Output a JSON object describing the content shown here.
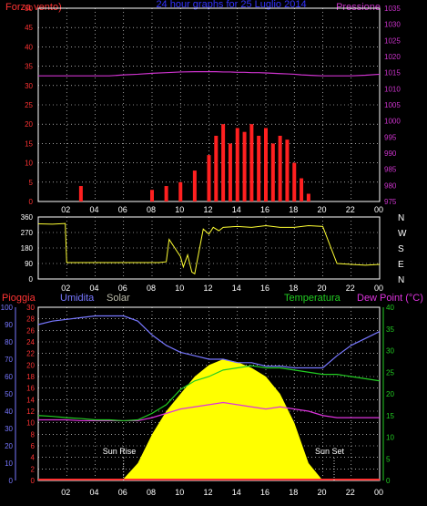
{
  "title": "24 hour graphs for  25 Luglio 2014",
  "colors": {
    "wind": "#ff2020",
    "pressure": "#cc33cc",
    "direction": "#ffff33",
    "rain": "#ff3333",
    "humidity": "#7777ff",
    "solar": "#ffff00",
    "temperature": "#22cc22",
    "dewpoint": "#dd33dd",
    "axis_left": "#ff3333",
    "axis_right": "#cc33cc",
    "frame": "#ffffff"
  },
  "x_ticks": [
    "02",
    "04",
    "06",
    "08",
    "10",
    "12",
    "14",
    "16",
    "18",
    "20",
    "22",
    "00"
  ],
  "panel1": {
    "left_label": "Forza vento)",
    "right_label": "Pressione",
    "left_ticks": [
      "0",
      "5",
      "10",
      "15",
      "20",
      "25",
      "30",
      "35",
      "40",
      "45",
      "50"
    ],
    "right_ticks": [
      "975",
      "980",
      "985",
      "990",
      "995",
      "1000",
      "1005",
      "1010",
      "1015",
      "1020",
      "1025",
      "1030",
      "1035"
    ]
  },
  "panel2": {
    "left_ticks": [
      "0",
      "90",
      "180",
      "270",
      "360"
    ],
    "compass": [
      "N",
      "W",
      "S",
      "E",
      "N"
    ]
  },
  "panel3": {
    "rain_label": "Pioggia",
    "humidity_label": "Umidita",
    "solar_label": "Solar",
    "temp_label": "Temperatura",
    "dew_label": "Dew Point (°C)",
    "humidity_ticks": [
      "0",
      "10",
      "20",
      "30",
      "40",
      "50",
      "60",
      "70",
      "80",
      "90",
      "100"
    ],
    "rain_ticks": [
      "0",
      "2",
      "4",
      "6",
      "8",
      "10",
      "12",
      "14",
      "16",
      "18",
      "20",
      "22",
      "24",
      "26",
      "28",
      "30"
    ],
    "temp_ticks": [
      "0",
      "5",
      "10",
      "15",
      "20",
      "25",
      "30",
      "35",
      "40"
    ],
    "sun_rise": "Sun Rise",
    "sun_set": "Sun Set"
  },
  "chart_data": [
    {
      "type": "line",
      "title": "24 hour graphs for  25 Luglio 2014",
      "ylabel": "Forza vento)",
      "y2label": "Pressione",
      "ylim": [
        0,
        50
      ],
      "y2lim": [
        975,
        1035
      ],
      "x": [
        0,
        1,
        2,
        3,
        4,
        5,
        6,
        7,
        8,
        9,
        10,
        11,
        12,
        12.5,
        13,
        13.5,
        14,
        14.5,
        15,
        15.5,
        16,
        16.5,
        17,
        17.5,
        18,
        18.5,
        19,
        19.5,
        20,
        21,
        22,
        23,
        24
      ],
      "series": [
        {
          "name": "Forza vento)",
          "values": [
            0,
            0,
            0,
            4,
            0,
            0,
            0,
            0,
            3,
            4,
            5,
            8,
            12,
            17,
            20,
            15,
            19,
            18,
            20,
            17,
            19,
            15,
            17,
            16,
            10,
            6,
            2,
            0,
            0,
            0,
            0,
            0,
            0
          ]
        },
        {
          "name": "Pressione",
          "values": [
            1014,
            1014,
            1014,
            1014,
            1014,
            1014,
            1014.3,
            1014.5,
            1014.8,
            1015,
            1015.2,
            1015.3,
            1015.3,
            1015.3,
            1015.2,
            1015.2,
            1015.1,
            1015.1,
            1015,
            1015,
            1014.9,
            1014.8,
            1014.7,
            1014.6,
            1014.5,
            1014.3,
            1014.2,
            1014.1,
            1014,
            1014,
            1014,
            1014.2,
            1014.5
          ]
        }
      ]
    },
    {
      "type": "line",
      "ylim": [
        0,
        360
      ],
      "x": [
        0,
        1,
        1.9,
        2,
        3,
        4,
        5,
        6,
        7,
        8,
        8.5,
        9,
        9.2,
        9.6,
        10,
        10.2,
        10.5,
        10.8,
        11,
        11.3,
        11.6,
        12,
        12.3,
        12.7,
        13,
        14,
        15,
        16,
        17,
        18,
        19,
        20,
        21,
        22,
        23,
        24
      ],
      "series": [
        {
          "name": "",
          "values": [
            320,
            318,
            322,
            95,
            95,
            95,
            95,
            95,
            95,
            95,
            95,
            100,
            230,
            180,
            130,
            70,
            140,
            40,
            30,
            160,
            290,
            260,
            300,
            280,
            300,
            305,
            300,
            310,
            300,
            300,
            310,
            305,
            90,
            85,
            80,
            85
          ]
        }
      ]
    },
    {
      "type": "line",
      "ylim": [
        0,
        100
      ],
      "x": [
        0,
        1,
        2,
        3,
        4,
        5,
        6,
        7,
        8,
        9,
        10,
        11,
        12,
        13,
        14,
        15,
        16,
        17,
        18,
        19,
        20,
        21,
        22,
        23,
        24
      ],
      "series": [
        {
          "name": "Umidita",
          "values": [
            90,
            92,
            93,
            94,
            95,
            95,
            95,
            92,
            84,
            78,
            74,
            72,
            70,
            70,
            68,
            68,
            66,
            66,
            65,
            65,
            65,
            72,
            78,
            82,
            86
          ]
        },
        {
          "name": "Temperatura",
          "values": [
            15,
            14.8,
            14.5,
            14.3,
            14,
            14,
            13.8,
            14,
            15.5,
            17.5,
            21,
            23,
            24,
            25.5,
            26,
            26.5,
            26,
            26,
            25.5,
            25,
            24.5,
            24.5,
            24,
            23.5,
            23
          ]
        },
        {
          "name": "Dew Point (°C)",
          "values": [
            14,
            14,
            14,
            13.8,
            13.8,
            13.8,
            13.8,
            13.8,
            14.5,
            15.5,
            16.5,
            17,
            17.5,
            18,
            17.5,
            17,
            16.5,
            17,
            16.5,
            16,
            15,
            14.5,
            14.5,
            14.5,
            14.5
          ]
        },
        {
          "name": "Pioggia",
          "values": [
            0,
            0,
            0,
            0,
            0,
            0,
            0,
            0,
            0,
            0,
            0,
            0,
            0,
            0,
            0,
            0,
            0,
            0,
            0,
            0,
            0,
            0,
            0,
            0,
            0
          ]
        },
        {
          "name": "Solar",
          "values": [
            0,
            0,
            0,
            0,
            0,
            0,
            0.3,
            3,
            8,
            12,
            15,
            18,
            20,
            21,
            20.5,
            19.5,
            18,
            15,
            10,
            3,
            0,
            0,
            0,
            0,
            0
          ]
        }
      ]
    }
  ]
}
